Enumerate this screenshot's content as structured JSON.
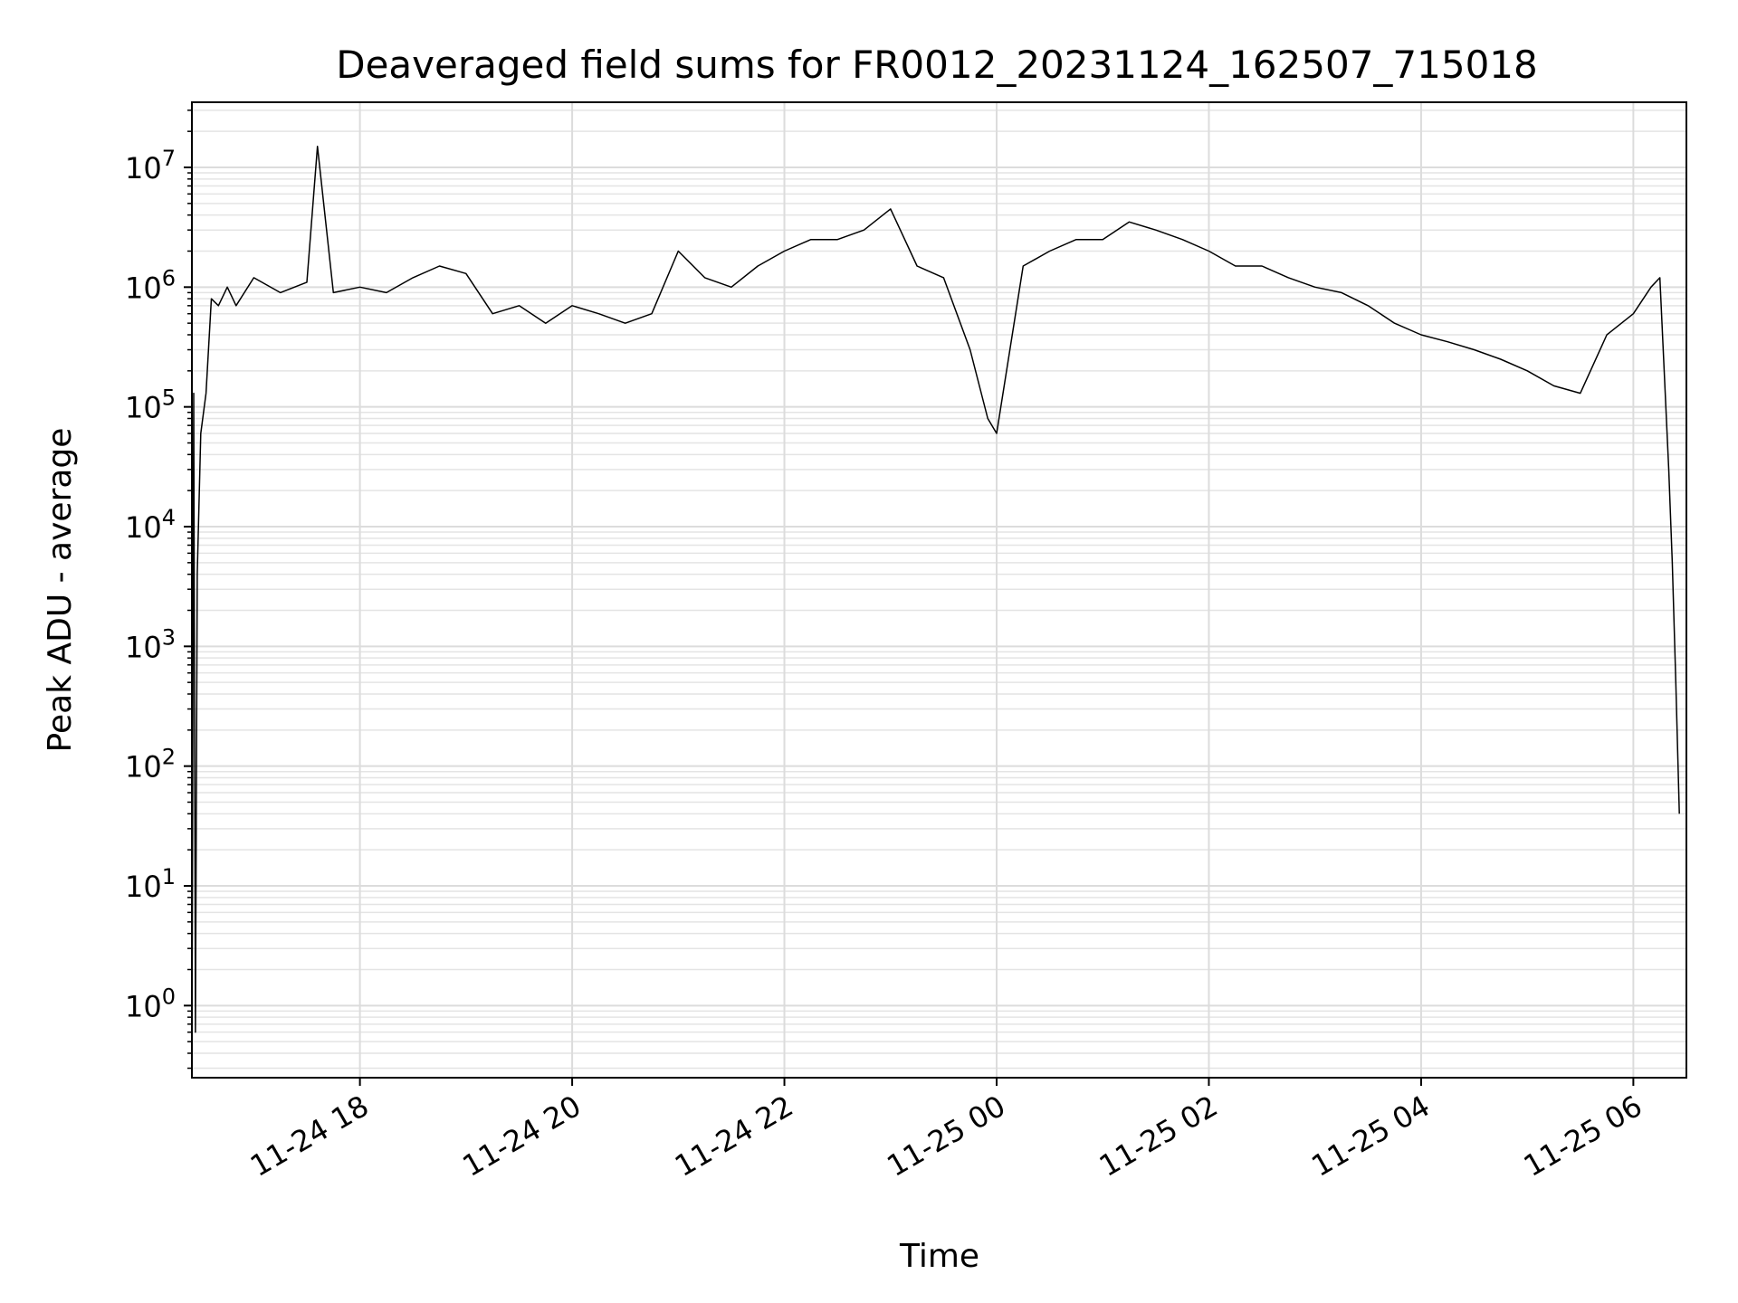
{
  "chart_data": {
    "type": "line",
    "title": "Deaveraged field sums for FR0012_20231124_162507_715018",
    "xlabel": "Time",
    "ylabel": "Peak ADU - average",
    "y_scale": "log",
    "ylim": [
      0.25,
      35000000
    ],
    "xlim": [
      "2023-11-24 16:25",
      "2023-11-25 06:30"
    ],
    "grid": true,
    "line_color": "#000000",
    "x_ticks": [
      {
        "value": "2023-11-24 18:00",
        "label": "11-24 18"
      },
      {
        "value": "2023-11-24 20:00",
        "label": "11-24 20"
      },
      {
        "value": "2023-11-24 22:00",
        "label": "11-24 22"
      },
      {
        "value": "2023-11-25 00:00",
        "label": "11-25 00"
      },
      {
        "value": "2023-11-25 02:00",
        "label": "11-25 02"
      },
      {
        "value": "2023-11-25 04:00",
        "label": "11-25 04"
      },
      {
        "value": "2023-11-25 06:00",
        "label": "11-25 06"
      }
    ],
    "y_ticks": [
      {
        "value": 1,
        "base": "10",
        "exp": "0"
      },
      {
        "value": 10,
        "base": "10",
        "exp": "1"
      },
      {
        "value": 100,
        "base": "10",
        "exp": "2"
      },
      {
        "value": 1000,
        "base": "10",
        "exp": "3"
      },
      {
        "value": 10000,
        "base": "10",
        "exp": "4"
      },
      {
        "value": 100000,
        "base": "10",
        "exp": "5"
      },
      {
        "value": 1000000,
        "base": "10",
        "exp": "6"
      },
      {
        "value": 10000000,
        "base": "10",
        "exp": "7"
      }
    ],
    "series": [
      {
        "x": [
          "2023-11-24 16:25",
          "2023-11-24 16:26",
          "2023-11-24 16:27",
          "2023-11-24 16:28",
          "2023-11-24 16:30",
          "2023-11-24 16:33",
          "2023-11-24 16:36",
          "2023-11-24 16:40",
          "2023-11-24 16:45",
          "2023-11-24 16:50",
          "2023-11-24 17:00",
          "2023-11-24 17:15",
          "2023-11-24 17:30",
          "2023-11-24 17:36",
          "2023-11-24 17:45",
          "2023-11-24 18:00",
          "2023-11-24 18:15",
          "2023-11-24 18:30",
          "2023-11-24 18:45",
          "2023-11-24 19:00",
          "2023-11-24 19:15",
          "2023-11-24 19:30",
          "2023-11-24 19:45",
          "2023-11-24 20:00",
          "2023-11-24 20:15",
          "2023-11-24 20:30",
          "2023-11-24 20:45",
          "2023-11-24 21:00",
          "2023-11-24 21:15",
          "2023-11-24 21:30",
          "2023-11-24 21:45",
          "2023-11-24 22:00",
          "2023-11-24 22:15",
          "2023-11-24 22:30",
          "2023-11-24 22:45",
          "2023-11-24 23:00",
          "2023-11-24 23:15",
          "2023-11-24 23:30",
          "2023-11-24 23:45",
          "2023-11-24 23:55",
          "2023-11-25 00:00",
          "2023-11-25 00:15",
          "2023-11-25 00:30",
          "2023-11-25 00:45",
          "2023-11-25 01:00",
          "2023-11-25 01:15",
          "2023-11-25 01:30",
          "2023-11-25 01:45",
          "2023-11-25 02:00",
          "2023-11-25 02:15",
          "2023-11-25 02:30",
          "2023-11-25 02:45",
          "2023-11-25 03:00",
          "2023-11-25 03:15",
          "2023-11-25 03:30",
          "2023-11-25 03:45",
          "2023-11-25 04:00",
          "2023-11-25 04:15",
          "2023-11-25 04:30",
          "2023-11-25 04:45",
          "2023-11-25 05:00",
          "2023-11-25 05:15",
          "2023-11-25 05:30",
          "2023-11-25 05:45",
          "2023-11-25 06:00",
          "2023-11-25 06:10",
          "2023-11-25 06:15",
          "2023-11-25 06:20",
          "2023-11-25 06:22",
          "2023-11-25 06:24",
          "2023-11-25 06:26"
        ],
        "values": [
          0.25,
          130000,
          0.6,
          4000,
          60000,
          130000,
          800000,
          700000,
          1000000,
          700000,
          1200000,
          900000,
          1100000,
          15000000,
          900000,
          1000000,
          900000,
          1200000,
          1500000,
          1300000,
          600000,
          700000,
          500000,
          700000,
          600000,
          500000,
          600000,
          2000000,
          1200000,
          1000000,
          1500000,
          2000000,
          2500000,
          2500000,
          3000000,
          4500000,
          1500000,
          1200000,
          300000,
          80000,
          60000,
          1500000,
          2000000,
          2500000,
          2500000,
          3500000,
          3000000,
          2500000,
          2000000,
          1500000,
          1500000,
          1200000,
          1000000,
          900000,
          700000,
          500000,
          400000,
          350000,
          300000,
          250000,
          200000,
          150000,
          130000,
          400000,
          600000,
          1000000,
          1200000,
          30000,
          5000,
          500,
          40
        ]
      }
    ]
  }
}
